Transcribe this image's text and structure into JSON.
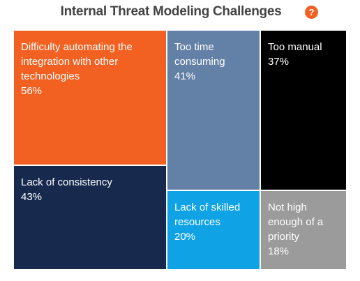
{
  "chart_data": {
    "type": "treemap",
    "title": "Internal Threat Modeling Challenges",
    "categories": [
      "Difficulty automating the integration with other technologies",
      "Lack of consistency",
      "Too time consuming",
      "Too manual",
      "Lack of skilled resources",
      "Not high enough of a priority"
    ],
    "values": [
      56,
      43,
      41,
      37,
      20,
      18
    ],
    "value_labels": [
      "56%",
      "43%",
      "41%",
      "37%",
      "20%",
      "18%"
    ],
    "colors": [
      "#f26122",
      "#172a4e",
      "#6380a6",
      "#000000",
      "#0fa3e6",
      "#9b9b9b"
    ]
  },
  "help_icon": "?"
}
